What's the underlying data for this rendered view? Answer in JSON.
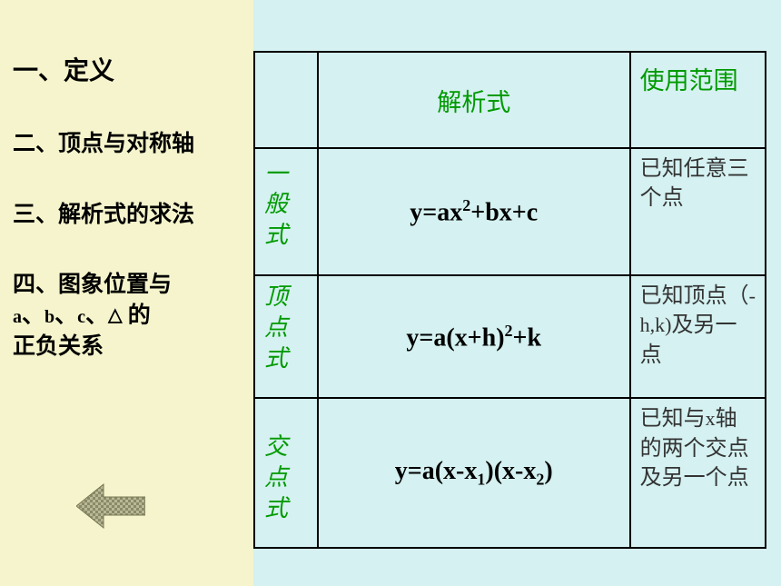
{
  "sidebar": {
    "items": [
      {
        "text": "一、定义"
      },
      {
        "text": "二、顶点与对称轴"
      },
      {
        "text": "三、解析式的求法"
      },
      {
        "line1": "四、图象位置与",
        "line2_prefix": "a",
        "line2_sep1": "、",
        "line2_b": "b",
        "line2_sep2": "、",
        "line2_c": "c",
        "line2_sep3": "、",
        "line2_tri": "△",
        "line2_suffix": "  的",
        "line3": "正负关系"
      }
    ]
  },
  "table": {
    "headers": {
      "col1": "",
      "col2": "解析式",
      "col3": "使用范围"
    },
    "rows": [
      {
        "form_label": "一般式",
        "formula_html": "y=ax<sup>2</sup>+bx+c",
        "scope_html": "已知任意三个点"
      },
      {
        "form_label": "顶点式",
        "formula_html": "y=a(x+h)<sup>2</sup>+k",
        "scope_html": "已知顶点（<span class='latin'>-h,k)</span>及另一点"
      },
      {
        "form_label": "交点式",
        "formula_html": "y=a(x-x<sub>1</sub>)(x-x<sub>2</sub>)",
        "scope_html": "已知与<span class='latin'>x</span>轴的两个交点及另一个点"
      }
    ]
  },
  "icons": {
    "back_arrow": "back-arrow"
  },
  "colors": {
    "sidebar_bg": "#f5f4cc",
    "main_bg": "#d5f1f1",
    "heading_green": "#009a00",
    "text_black": "#000000",
    "border": "#000000"
  }
}
